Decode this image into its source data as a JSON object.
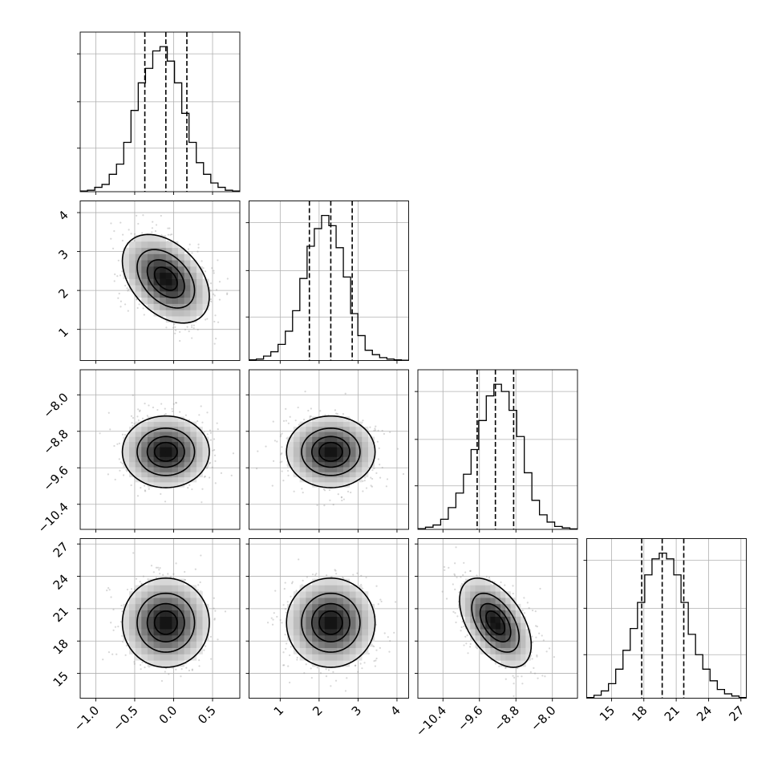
{
  "chart_data": {
    "type": "corner",
    "n_params": 4,
    "params": [
      {
        "mean": -0.1,
        "std": 0.27,
        "range": [
          -1.2,
          0.85
        ],
        "ticks": [
          -1.0,
          -0.5,
          0.0,
          0.5
        ],
        "tick_labels": [
          "−1.0",
          "−0.5",
          "0.0",
          "0.5"
        ],
        "quantiles": [
          -0.37,
          -0.1,
          0.17
        ],
        "hist": [
          0.005,
          0.01,
          0.03,
          0.05,
          0.12,
          0.19,
          0.34,
          0.56,
          0.75,
          0.85,
          0.97,
          1.0,
          0.9,
          0.75,
          0.54,
          0.34,
          0.2,
          0.12,
          0.06,
          0.03,
          0.01,
          0.005
        ]
      },
      {
        "mean": 2.3,
        "std": 0.55,
        "range": [
          0.2,
          4.3
        ],
        "ticks": [
          1,
          2,
          3,
          4
        ],
        "tick_labels": [
          "1",
          "2",
          "3",
          "4"
        ],
        "quantiles": [
          1.75,
          2.3,
          2.85
        ],
        "hist": [
          0.005,
          0.01,
          0.03,
          0.06,
          0.11,
          0.2,
          0.34,
          0.56,
          0.78,
          0.9,
          0.99,
          0.92,
          0.77,
          0.57,
          0.32,
          0.17,
          0.07,
          0.04,
          0.02,
          0.01,
          0.005,
          0.002
        ]
      },
      {
        "mean": -9.25,
        "std": 0.38,
        "range": [
          -10.95,
          -7.45
        ],
        "ticks": [
          -10.4,
          -9.6,
          -8.8,
          -8.0
        ],
        "tick_labels": [
          "−10.4",
          "−9.6",
          "−8.8",
          "−8.0"
        ],
        "quantiles": [
          -9.65,
          -9.25,
          -8.85
        ],
        "hist": [
          0.005,
          0.015,
          0.03,
          0.07,
          0.15,
          0.25,
          0.38,
          0.55,
          0.75,
          0.92,
          1.0,
          0.95,
          0.82,
          0.64,
          0.39,
          0.2,
          0.1,
          0.05,
          0.02,
          0.01,
          0.003
        ]
      },
      {
        "mean": 19.7,
        "std": 2.0,
        "range": [
          12.7,
          27.5
        ],
        "ticks": [
          15,
          18,
          21,
          24,
          27
        ],
        "tick_labels": [
          "15",
          "18",
          "21",
          "24",
          "27"
        ],
        "quantiles": [
          17.8,
          19.7,
          21.7
        ],
        "hist": [
          0.005,
          0.02,
          0.05,
          0.1,
          0.2,
          0.33,
          0.48,
          0.66,
          0.85,
          0.96,
          1.0,
          0.96,
          0.85,
          0.66,
          0.44,
          0.3,
          0.2,
          0.12,
          0.06,
          0.03,
          0.015,
          0.005
        ]
      }
    ],
    "correlations": [
      {
        "row": 1,
        "col": 0,
        "rho": -0.4
      },
      {
        "row": 2,
        "col": 0,
        "rho": 0.0
      },
      {
        "row": 2,
        "col": 1,
        "rho": 0.0
      },
      {
        "row": 3,
        "col": 0,
        "rho": 0.0
      },
      {
        "row": 3,
        "col": 1,
        "rho": 0.0
      },
      {
        "row": 3,
        "col": 2,
        "rho": -0.5
      }
    ],
    "contour_levels_sigma": [
      0.5,
      1.0,
      1.5,
      2.0
    ],
    "grid": true,
    "histogram_style": "step",
    "quantile_style": "dashed"
  }
}
